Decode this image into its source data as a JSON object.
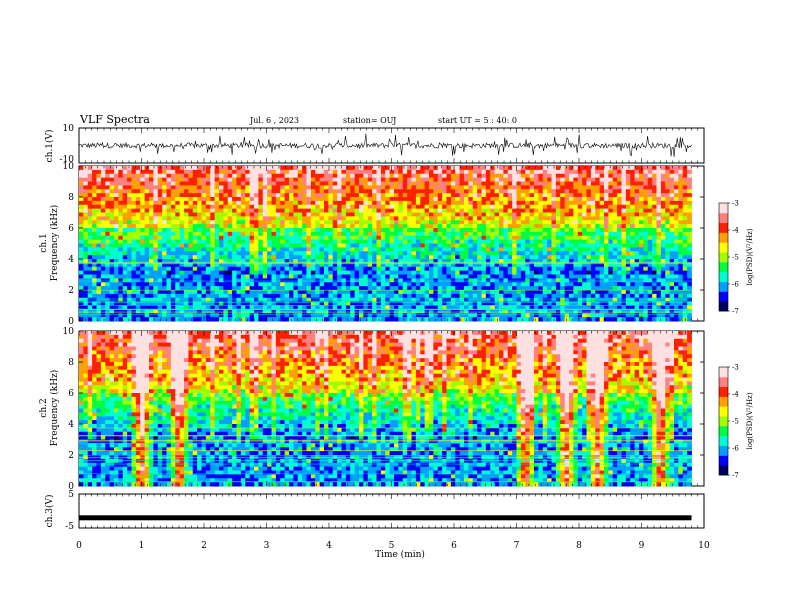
{
  "header": {
    "title": "VLF Spectra",
    "date": "Jul. 6 , 2023",
    "station": "station= OUJ",
    "start": "start UT = 5 : 40: 0"
  },
  "colors": {
    "scale": [
      "#000060",
      "#0000ff",
      "#00a0ff",
      "#00ffd0",
      "#00ff40",
      "#a0ff00",
      "#ffff00",
      "#ffa000",
      "#ff2000",
      "#ff8080",
      "#ffe0e0"
    ],
    "trace": "#000000"
  },
  "chart_data": [
    {
      "type": "line",
      "panel": "ch1-waveform",
      "ylabel": "ch.1(V)",
      "ylim": [
        -10,
        10
      ],
      "ytick_labels": [
        "10",
        "-10"
      ],
      "x_range_min": [
        0,
        9.8
      ],
      "y_baseline": 0
    },
    {
      "type": "heatmap",
      "panel": "ch1-spectrogram",
      "ylabel": "ch.1\nFrequency (kHz)",
      "ylabel_line1": "ch.1",
      "ylabel_line2": "Frequency (kHz)",
      "ylim": [
        0,
        10
      ],
      "yticks": [
        0,
        2,
        4,
        6,
        8,
        10
      ],
      "x_range_min": [
        0,
        9.8
      ],
      "colorbar": {
        "label": "log(PSD)(V²/Hz)",
        "range": [
          -7,
          -3
        ],
        "tick_labels": [
          "-3",
          "-4",
          "-5",
          "-6",
          "-7"
        ]
      }
    },
    {
      "type": "heatmap",
      "panel": "ch2-spectrogram",
      "ylabel_line1": "ch.2",
      "ylabel_line2": "Frequency (kHz)",
      "ylim": [
        0,
        10
      ],
      "yticks": [
        0,
        2,
        4,
        6,
        8,
        10
      ],
      "x_range_min": [
        0,
        9.8
      ],
      "bursts_min": [
        1.0,
        1.6,
        7.15,
        7.8,
        8.3,
        9.3
      ],
      "colorbar": {
        "label": "log(PSD)(V²/Hz)",
        "range": [
          -7,
          -3
        ],
        "tick_labels": [
          "-3",
          "-4",
          "-5",
          "-6",
          "-7"
        ]
      }
    },
    {
      "type": "line",
      "panel": "ch3-waveform",
      "ylabel": "ch.3(V)",
      "ylim": [
        -5,
        5
      ],
      "ytick_labels": [
        "5",
        "-5"
      ],
      "x_range_min": [
        0,
        9.8
      ],
      "y_value": -2
    }
  ],
  "xaxis": {
    "label": "Time (min)",
    "xlim": [
      0,
      10
    ],
    "tick_labels": [
      "0",
      "1",
      "2",
      "3",
      "4",
      "5",
      "6",
      "7",
      "8",
      "9",
      "10"
    ]
  }
}
